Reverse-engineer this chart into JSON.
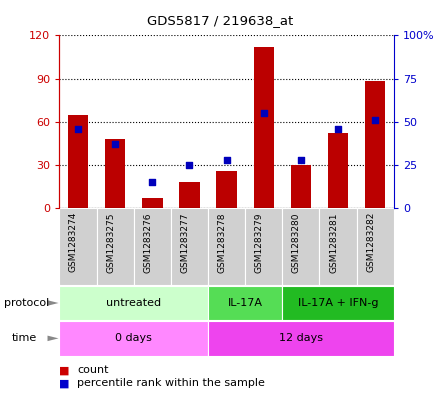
{
  "title": "GDS5817 / 219638_at",
  "samples": [
    "GSM1283274",
    "GSM1283275",
    "GSM1283276",
    "GSM1283277",
    "GSM1283278",
    "GSM1283279",
    "GSM1283280",
    "GSM1283281",
    "GSM1283282"
  ],
  "counts": [
    65,
    48,
    7,
    18,
    26,
    112,
    30,
    52,
    88
  ],
  "percentiles": [
    46,
    37,
    15,
    25,
    28,
    55,
    28,
    46,
    51
  ],
  "ylim_left": [
    0,
    120
  ],
  "ylim_right": [
    0,
    100
  ],
  "yticks_left": [
    0,
    30,
    60,
    90,
    120
  ],
  "ytick_labels_left": [
    "0",
    "30",
    "60",
    "90",
    "120"
  ],
  "yticks_right": [
    0,
    25,
    50,
    75,
    100
  ],
  "ytick_labels_right": [
    "0",
    "25",
    "50",
    "75",
    "100%"
  ],
  "bar_color": "#bb0000",
  "dot_color": "#0000bb",
  "left_axis_color": "#cc0000",
  "right_axis_color": "#0000cc",
  "protocol_groups": [
    {
      "label": "untreated",
      "start": 0,
      "end": 4,
      "color": "#ccffcc"
    },
    {
      "label": "IL-17A",
      "start": 4,
      "end": 6,
      "color": "#55dd55"
    },
    {
      "label": "IL-17A + IFN-g",
      "start": 6,
      "end": 9,
      "color": "#22bb22"
    }
  ],
  "time_groups": [
    {
      "label": "0 days",
      "start": 0,
      "end": 4,
      "color": "#ff88ff"
    },
    {
      "label": "12 days",
      "start": 4,
      "end": 9,
      "color": "#ee44ee"
    }
  ],
  "legend_count_color": "#cc0000",
  "legend_percentile_color": "#0000cc",
  "sample_bg_color": "#d0d0d0",
  "plot_bg_color": "#ffffff"
}
